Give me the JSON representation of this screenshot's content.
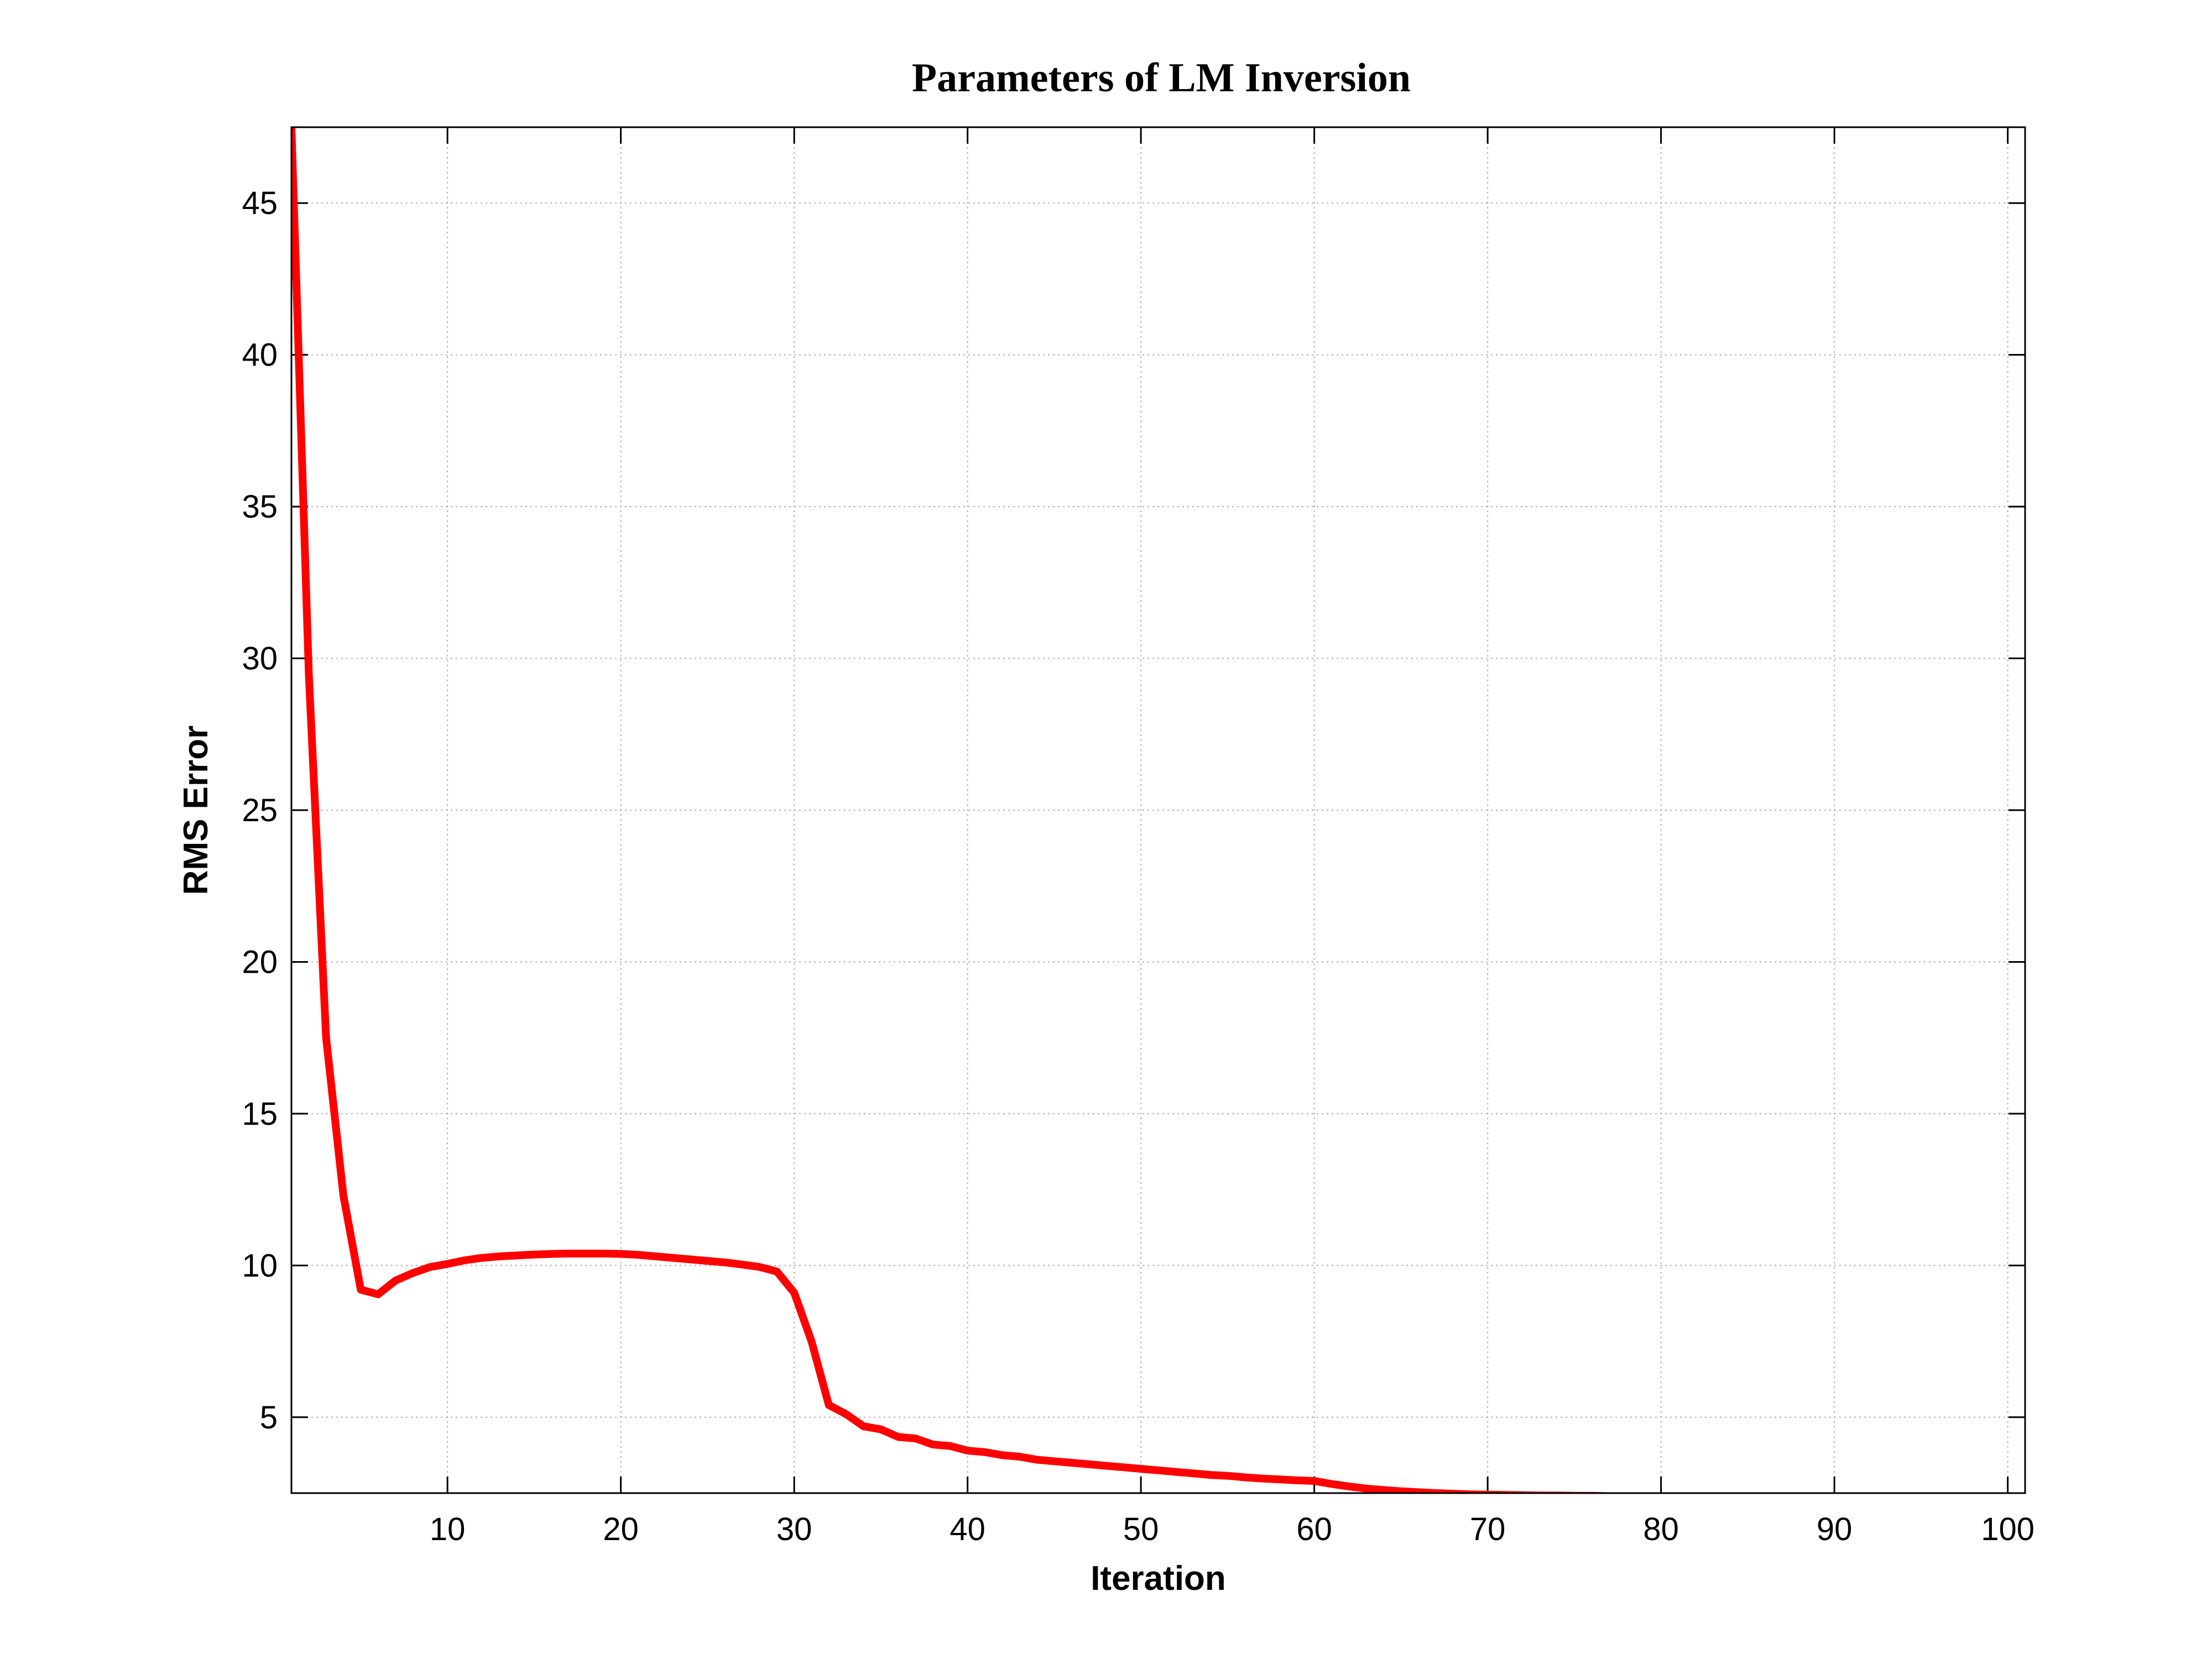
{
  "chart_data": {
    "type": "line",
    "title": "Parameters of LM Inversion",
    "xlabel": "Iteration",
    "ylabel": "RMS Error",
    "xlim": [
      1,
      101
    ],
    "ylim": [
      2.5,
      47.5
    ],
    "xticks": [
      10,
      20,
      30,
      40,
      50,
      60,
      70,
      80,
      90,
      100
    ],
    "yticks": [
      5,
      10,
      15,
      20,
      25,
      30,
      35,
      40,
      45
    ],
    "grid": true,
    "line_color": "#ff0000",
    "series": [
      {
        "x": [
          1,
          2,
          3,
          4,
          5,
          6,
          7,
          8,
          9,
          10,
          11,
          12,
          13,
          14,
          15,
          16,
          17,
          18,
          19,
          20,
          21,
          22,
          23,
          24,
          25,
          26,
          27,
          28,
          29,
          30,
          31,
          32,
          33,
          34,
          35,
          36,
          37,
          38,
          39,
          40,
          41,
          42,
          43,
          44,
          45,
          46,
          47,
          48,
          49,
          50,
          51,
          52,
          53,
          54,
          55,
          56,
          57,
          58,
          59,
          60,
          61,
          62,
          63,
          64,
          65,
          66,
          67,
          68,
          69,
          70,
          71,
          72,
          73,
          74,
          75,
          76,
          77,
          78,
          79,
          80,
          81,
          82,
          83,
          84,
          85,
          86,
          87,
          88,
          89,
          90,
          91,
          92,
          93,
          94,
          95,
          96,
          97,
          98,
          99,
          100,
          101
        ],
        "values": [
          47.5,
          29.5,
          17.5,
          12.3,
          9.2,
          9.05,
          9.5,
          9.75,
          9.95,
          10.05,
          10.17,
          10.25,
          10.3,
          10.33,
          10.36,
          10.38,
          10.39,
          10.39,
          10.39,
          10.38,
          10.35,
          10.3,
          10.25,
          10.2,
          10.15,
          10.1,
          10.03,
          9.95,
          9.8,
          9.1,
          7.5,
          5.4,
          5.1,
          4.7,
          4.6,
          4.35,
          4.3,
          4.1,
          4.05,
          3.9,
          3.85,
          3.75,
          3.7,
          3.6,
          3.55,
          3.5,
          3.45,
          3.4,
          3.35,
          3.3,
          3.25,
          3.2,
          3.15,
          3.1,
          3.07,
          3.02,
          2.98,
          2.95,
          2.92,
          2.9,
          2.8,
          2.72,
          2.65,
          2.6,
          2.56,
          2.53,
          2.5,
          2.48,
          2.46,
          2.45,
          2.44,
          2.43,
          2.42,
          2.42,
          2.41,
          2.41,
          2.4,
          2.4,
          2.4,
          2.4,
          2.4,
          2.4,
          2.4,
          2.4,
          2.4,
          2.4,
          2.4,
          2.4,
          2.4,
          2.4,
          2.4,
          2.4,
          2.4,
          2.4,
          2.4,
          2.4,
          2.4,
          2.4,
          2.4,
          2.4,
          2.4
        ]
      }
    ]
  }
}
